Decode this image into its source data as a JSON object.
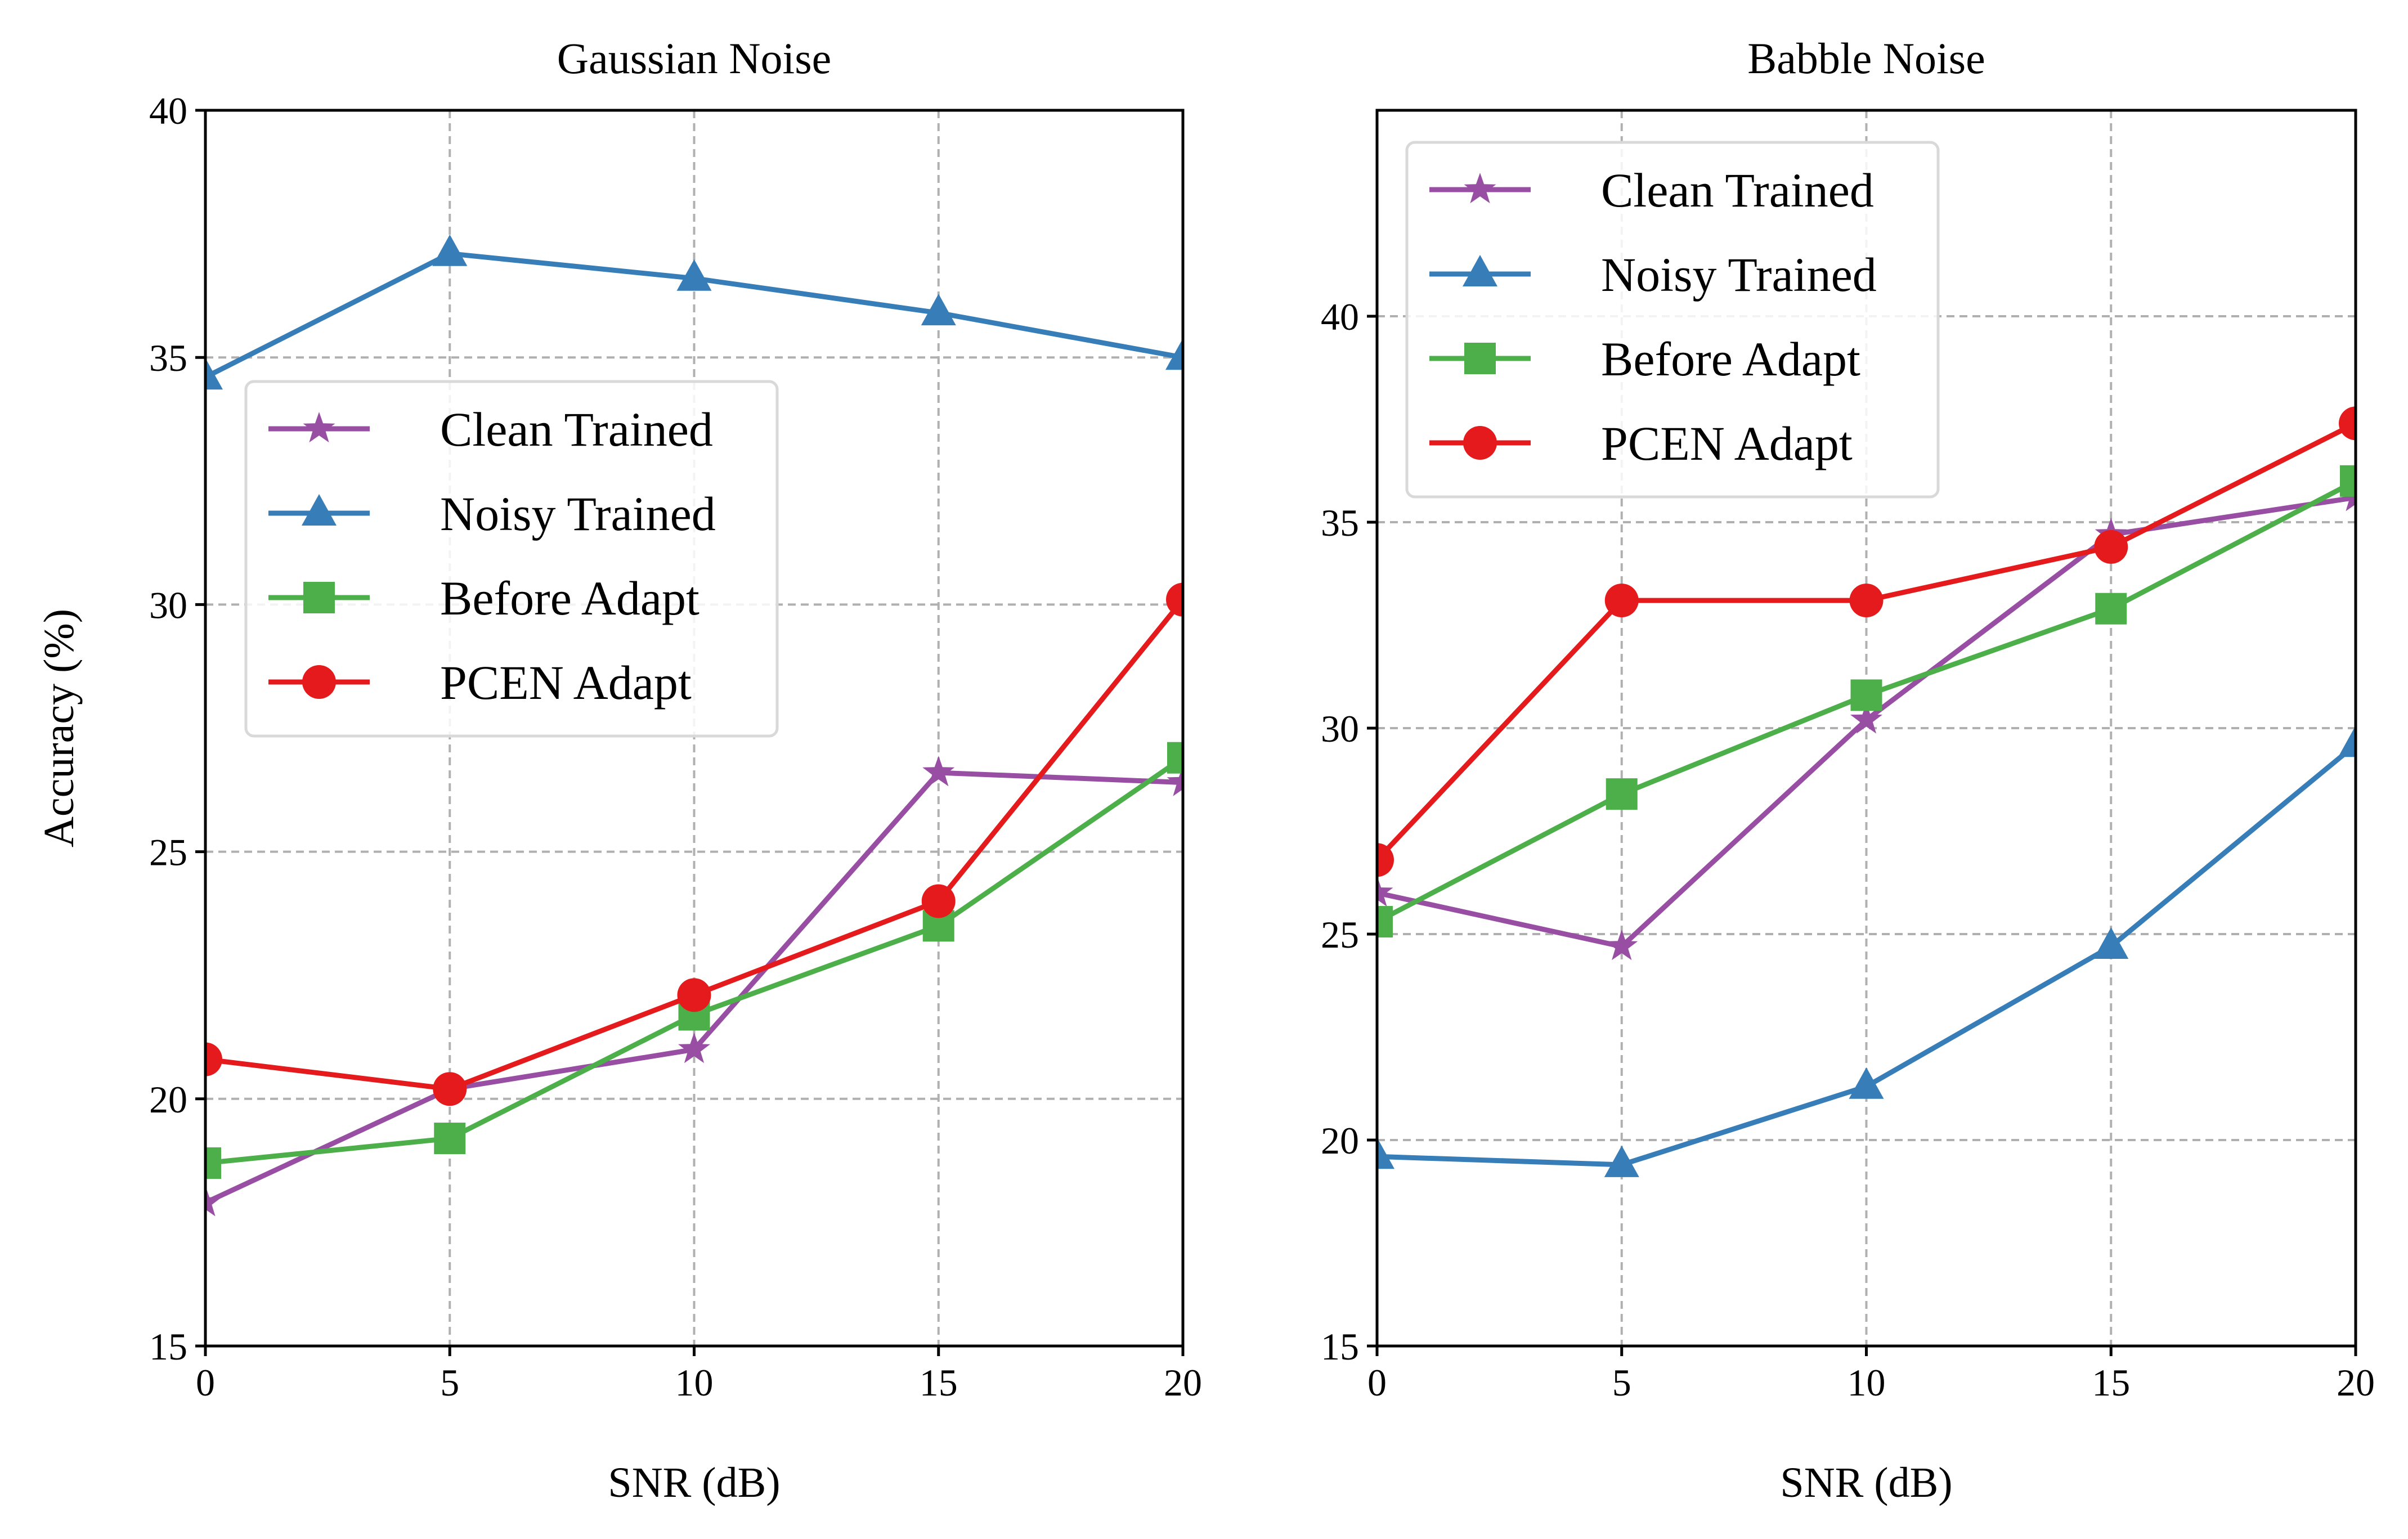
{
  "chart_data": [
    {
      "type": "line",
      "title": "Gaussian Noise",
      "xlabel": "SNR (dB)",
      "ylabel": "Accuracy (%)",
      "x": [
        0,
        5,
        10,
        15,
        20
      ],
      "xlim": [
        0,
        20
      ],
      "ylim": [
        15,
        40
      ],
      "xticks": [
        "0",
        "5",
        "10",
        "15",
        "20"
      ],
      "yticks": [
        "15",
        "20",
        "25",
        "30",
        "35",
        "40"
      ],
      "grid": true,
      "legend_position": "center-left",
      "series": [
        {
          "name": "Clean Trained",
          "color": "#984ea3",
          "marker": "star",
          "values": [
            17.9,
            20.2,
            21.0,
            26.6,
            26.4
          ]
        },
        {
          "name": "Noisy Trained",
          "color": "#377eb8",
          "marker": "triangle",
          "values": [
            34.6,
            37.1,
            36.6,
            35.9,
            35.0
          ]
        },
        {
          "name": "Before Adapt",
          "color": "#4daf4a",
          "marker": "square",
          "values": [
            18.7,
            19.2,
            21.7,
            23.5,
            26.9
          ]
        },
        {
          "name": "PCEN Adapt",
          "color": "#e41a1c",
          "marker": "circle",
          "values": [
            20.8,
            20.2,
            22.1,
            24.0,
            30.1
          ]
        }
      ]
    },
    {
      "type": "line",
      "title": "Babble Noise",
      "xlabel": "SNR (dB)",
      "ylabel": "",
      "x": [
        0,
        5,
        10,
        15,
        20
      ],
      "xlim": [
        0,
        20
      ],
      "ylim": [
        15,
        45
      ],
      "xticks": [
        "0",
        "5",
        "10",
        "15",
        "20"
      ],
      "yticks": [
        "15",
        "20",
        "25",
        "30",
        "35",
        "40"
      ],
      "grid": true,
      "legend_position": "top-left",
      "series": [
        {
          "name": "Clean Trained",
          "color": "#984ea3",
          "marker": "star",
          "values": [
            26.0,
            24.7,
            30.2,
            34.7,
            35.6
          ]
        },
        {
          "name": "Noisy Trained",
          "color": "#377eb8",
          "marker": "triangle",
          "values": [
            19.6,
            19.4,
            21.3,
            24.7,
            29.6
          ]
        },
        {
          "name": "Before Adapt",
          "color": "#4daf4a",
          "marker": "square",
          "values": [
            25.3,
            28.4,
            30.8,
            32.9,
            36.0
          ]
        },
        {
          "name": "PCEN Adapt",
          "color": "#e41a1c",
          "marker": "circle",
          "values": [
            26.8,
            33.1,
            33.1,
            34.4,
            37.4
          ]
        }
      ]
    }
  ]
}
